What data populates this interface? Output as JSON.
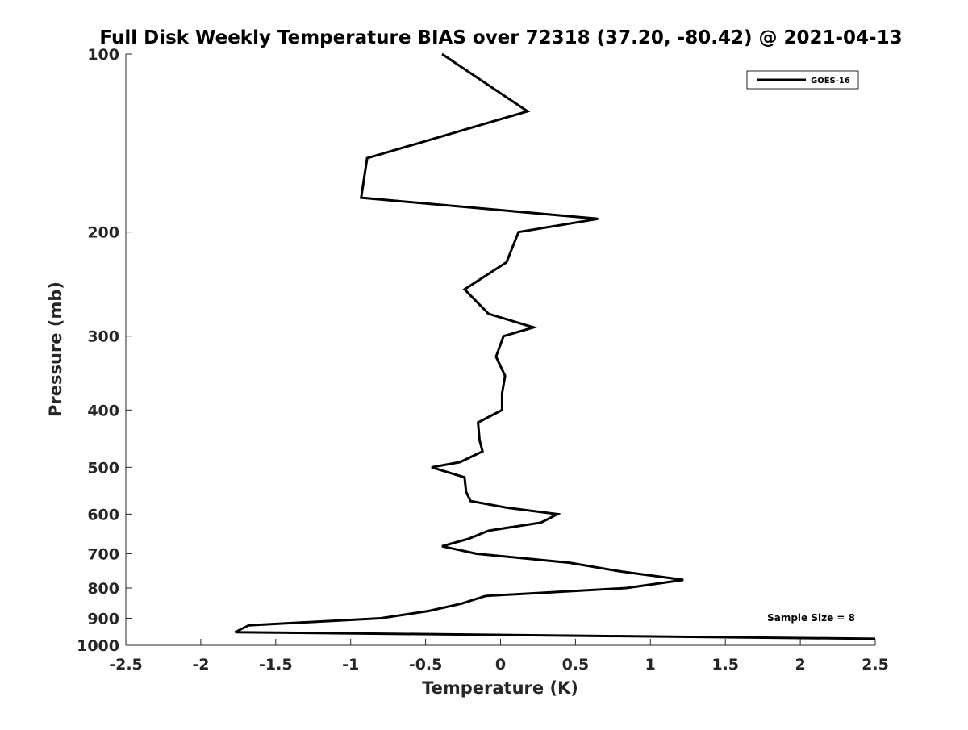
{
  "chart_data": {
    "type": "line",
    "title": "Full Disk Weekly Temperature BIAS over 72318 (37.20, -80.42) @ 2021-04-13",
    "xlabel": "Temperature (K)",
    "ylabel": "Pressure (mb)",
    "xlim": [
      -2.5,
      2.5
    ],
    "ylim": [
      100,
      1000
    ],
    "y_scale": "log",
    "y_reversed": true,
    "grid": false,
    "x_ticks": [
      -2.5,
      -2,
      -1.5,
      -1,
      -0.5,
      0,
      0.5,
      1,
      1.5,
      2,
      2.5
    ],
    "x_tick_labels": [
      "-2.5",
      "-2",
      "-1.5",
      "-1",
      "-0.5",
      "0",
      "0.5",
      "1",
      "1.5",
      "2",
      "2.5"
    ],
    "y_ticks": [
      100,
      200,
      300,
      400,
      500,
      600,
      700,
      800,
      900,
      1000
    ],
    "y_tick_labels": [
      "100",
      "200",
      "300",
      "400",
      "500",
      "600",
      "700",
      "800",
      "900",
      "1000"
    ],
    "legend": {
      "placement": "top-right",
      "entries": [
        "GOES-16"
      ]
    },
    "annotations": [
      "Sample Size = 8"
    ],
    "series": [
      {
        "name": "GOES-16",
        "color": "#000000",
        "points": [
          [
            -0.39,
            100
          ],
          [
            0.18,
            125
          ],
          [
            -0.89,
            150
          ],
          [
            -0.93,
            175
          ],
          [
            0.65,
            190
          ],
          [
            0.12,
            200
          ],
          [
            0.04,
            225
          ],
          [
            -0.24,
            250
          ],
          [
            -0.08,
            275
          ],
          [
            0.22,
            290
          ],
          [
            0.02,
            300
          ],
          [
            -0.03,
            325
          ],
          [
            0.03,
            350
          ],
          [
            0.01,
            375
          ],
          [
            0.01,
            400
          ],
          [
            -0.15,
            420
          ],
          [
            -0.14,
            450
          ],
          [
            -0.12,
            470
          ],
          [
            -0.27,
            490
          ],
          [
            -0.46,
            500
          ],
          [
            -0.24,
            520
          ],
          [
            -0.23,
            550
          ],
          [
            -0.2,
            570
          ],
          [
            0.04,
            585
          ],
          [
            0.38,
            600
          ],
          [
            0.27,
            620
          ],
          [
            -0.08,
            640
          ],
          [
            -0.21,
            660
          ],
          [
            -0.39,
            680
          ],
          [
            -0.16,
            700
          ],
          [
            0.46,
            725
          ],
          [
            0.8,
            750
          ],
          [
            1.22,
            775
          ],
          [
            0.84,
            800
          ],
          [
            -0.1,
            825
          ],
          [
            -0.26,
            850
          ],
          [
            -0.48,
            875
          ],
          [
            -0.8,
            900
          ],
          [
            -1.68,
            925
          ],
          [
            -1.77,
            950
          ],
          [
            2.5,
            975
          ]
        ]
      }
    ]
  }
}
